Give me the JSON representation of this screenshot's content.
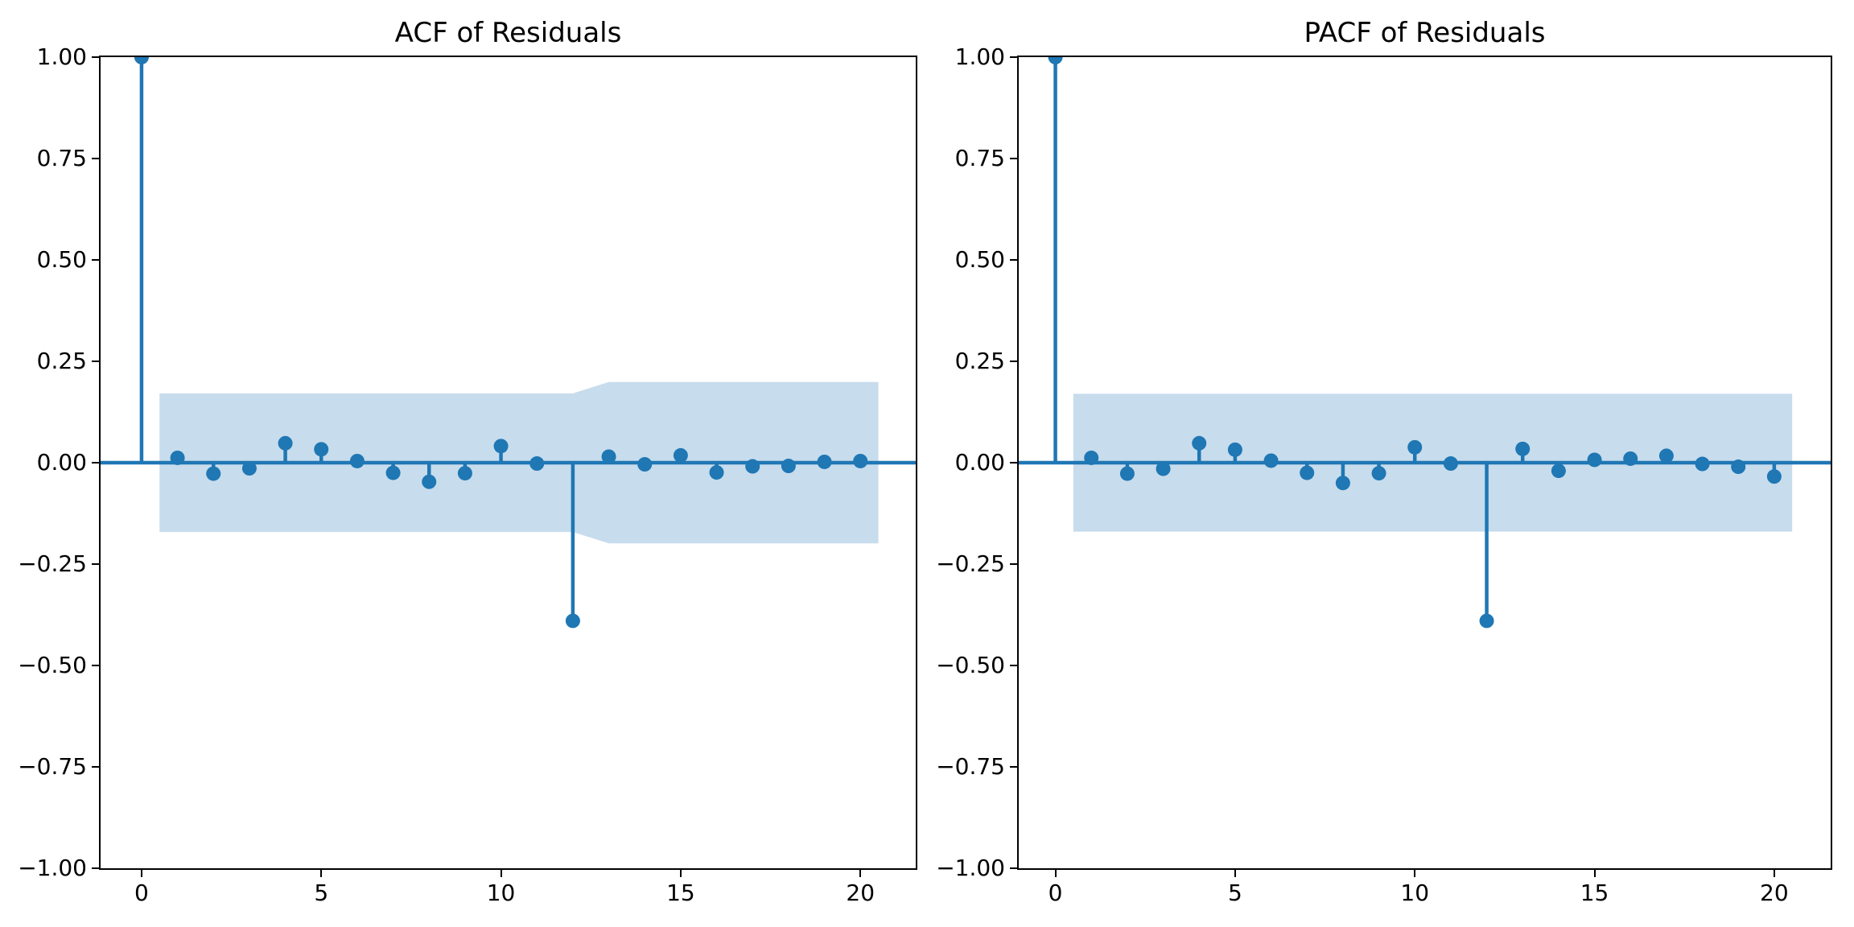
{
  "figure": {
    "background": "#ffffff"
  },
  "chart_data": [
    {
      "type": "scatter",
      "variant": "stem-correlogram",
      "title": "ACF of Residuals",
      "xlabel": "",
      "ylabel": "",
      "x": [
        0,
        1,
        2,
        3,
        4,
        5,
        6,
        7,
        8,
        9,
        10,
        11,
        12,
        13,
        14,
        15,
        16,
        17,
        18,
        19,
        20
      ],
      "values": [
        1.0,
        0.012,
        -0.027,
        -0.014,
        0.048,
        0.033,
        0.004,
        -0.025,
        -0.047,
        -0.026,
        0.041,
        -0.002,
        -0.39,
        0.015,
        -0.004,
        0.018,
        -0.024,
        -0.009,
        -0.008,
        0.002,
        0.004
      ],
      "confidence_band": {
        "x": [
          0.5,
          12,
          13,
          20.5
        ],
        "upper": [
          0.171,
          0.171,
          0.199,
          0.199
        ],
        "lower": [
          -0.171,
          -0.171,
          -0.199,
          -0.199
        ]
      },
      "xlim": [
        -1.14,
        21.54
      ],
      "ylim": [
        -1.0,
        1.0
      ],
      "grid": false,
      "yticks": {
        "values": [
          1.0,
          0.75,
          0.5,
          0.25,
          0.0,
          -0.25,
          -0.5,
          -0.75,
          -1.0
        ],
        "labels": [
          "1.00",
          "0.75",
          "0.50",
          "0.25",
          "0.00",
          "−0.25",
          "−0.50",
          "−0.75",
          "−1.00"
        ]
      },
      "xticks": {
        "values": [
          0,
          5,
          10,
          15,
          20
        ],
        "labels": [
          "0",
          "5",
          "10",
          "15",
          "20"
        ]
      },
      "colors": {
        "stem": "#1f77b4",
        "marker": "#1f77b4",
        "band": "#c7dcec",
        "spine": "#000000",
        "text": "#000000"
      }
    },
    {
      "type": "scatter",
      "variant": "stem-correlogram",
      "title": "PACF of Residuals",
      "xlabel": "",
      "ylabel": "",
      "x": [
        0,
        1,
        2,
        3,
        4,
        5,
        6,
        7,
        8,
        9,
        10,
        11,
        12,
        13,
        14,
        15,
        16,
        17,
        18,
        19,
        20
      ],
      "values": [
        1.0,
        0.012,
        -0.027,
        -0.015,
        0.048,
        0.032,
        0.005,
        -0.025,
        -0.05,
        -0.026,
        0.038,
        -0.002,
        -0.39,
        0.034,
        -0.02,
        0.007,
        0.01,
        0.017,
        -0.003,
        -0.01,
        -0.034
      ],
      "confidence_band": {
        "x": [
          0.5,
          20.5
        ],
        "upper": [
          0.17,
          0.17
        ],
        "lower": [
          -0.17,
          -0.17
        ]
      },
      "xlim": [
        -1.02,
        21.57
      ],
      "ylim": [
        -1.0,
        1.0
      ],
      "grid": false,
      "yticks": {
        "values": [
          1.0,
          0.75,
          0.5,
          0.25,
          0.0,
          -0.25,
          -0.5,
          -0.75,
          -1.0
        ],
        "labels": [
          "1.00",
          "0.75",
          "0.50",
          "0.25",
          "0.00",
          "−0.25",
          "−0.50",
          "−0.75",
          "−1.00"
        ]
      },
      "xticks": {
        "values": [
          0,
          5,
          10,
          15,
          20
        ],
        "labels": [
          "0",
          "5",
          "10",
          "15",
          "20"
        ]
      },
      "colors": {
        "stem": "#1f77b4",
        "marker": "#1f77b4",
        "band": "#c7dcec",
        "spine": "#000000",
        "text": "#000000"
      }
    }
  ]
}
